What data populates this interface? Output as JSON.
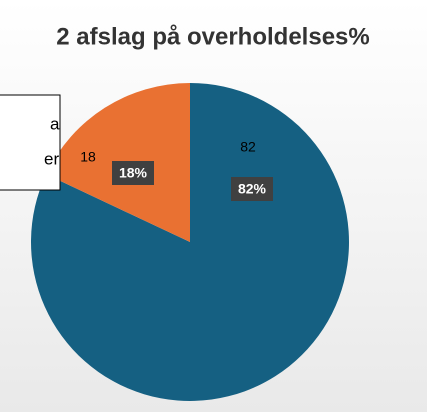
{
  "chart_data": {
    "type": "pie",
    "title": "2 afslag på overholdelses%",
    "values": [
      82,
      18
    ],
    "value_labels": [
      "82%",
      "18%"
    ],
    "colors": [
      "#156082",
      "#e97132"
    ],
    "legend_fragments": [
      "a",
      "er"
    ]
  }
}
